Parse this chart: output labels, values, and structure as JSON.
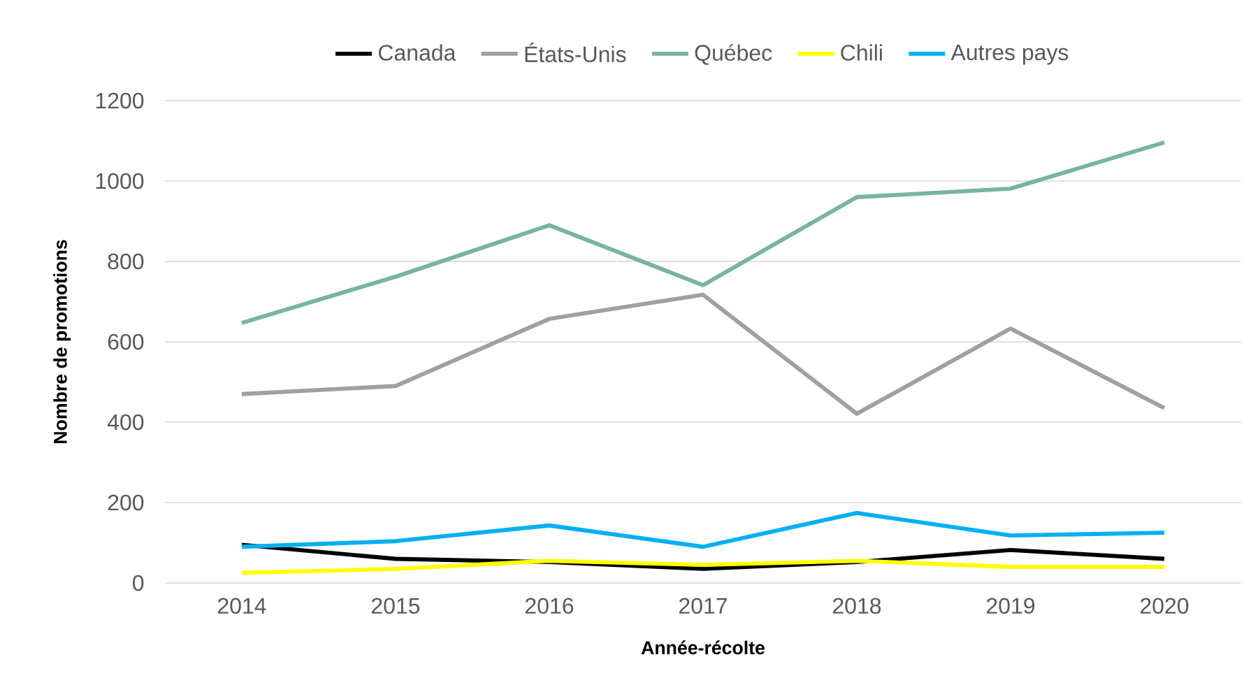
{
  "chart_data": {
    "type": "line",
    "xlabel": "Année-récolte",
    "ylabel": "Nombre de promotions",
    "categories": [
      "2014",
      "2015",
      "2016",
      "2017",
      "2018",
      "2019",
      "2020"
    ],
    "series": [
      {
        "name": "Canada",
        "color": "#000000",
        "values": [
          95,
          60,
          52,
          35,
          52,
          82,
          60
        ]
      },
      {
        "name": "États-Unis",
        "color": "#a0a0a0",
        "values": [
          470,
          490,
          657,
          717,
          421,
          633,
          435
        ]
      },
      {
        "name": "Québec",
        "color": "#78b4a0",
        "values": [
          647,
          762,
          890,
          741,
          960,
          981,
          1096
        ]
      },
      {
        "name": "Chili",
        "color": "#ffff00",
        "values": [
          25,
          35,
          55,
          45,
          55,
          40,
          40
        ]
      },
      {
        "name": "Autres pays",
        "color": "#00b0f0",
        "values": [
          90,
          104,
          143,
          90,
          174,
          118,
          125
        ]
      }
    ],
    "ylim": [
      0,
      1200
    ],
    "yticks": [
      0,
      200,
      400,
      600,
      800,
      1000,
      1200
    ],
    "grid": "y",
    "legend": "top"
  }
}
